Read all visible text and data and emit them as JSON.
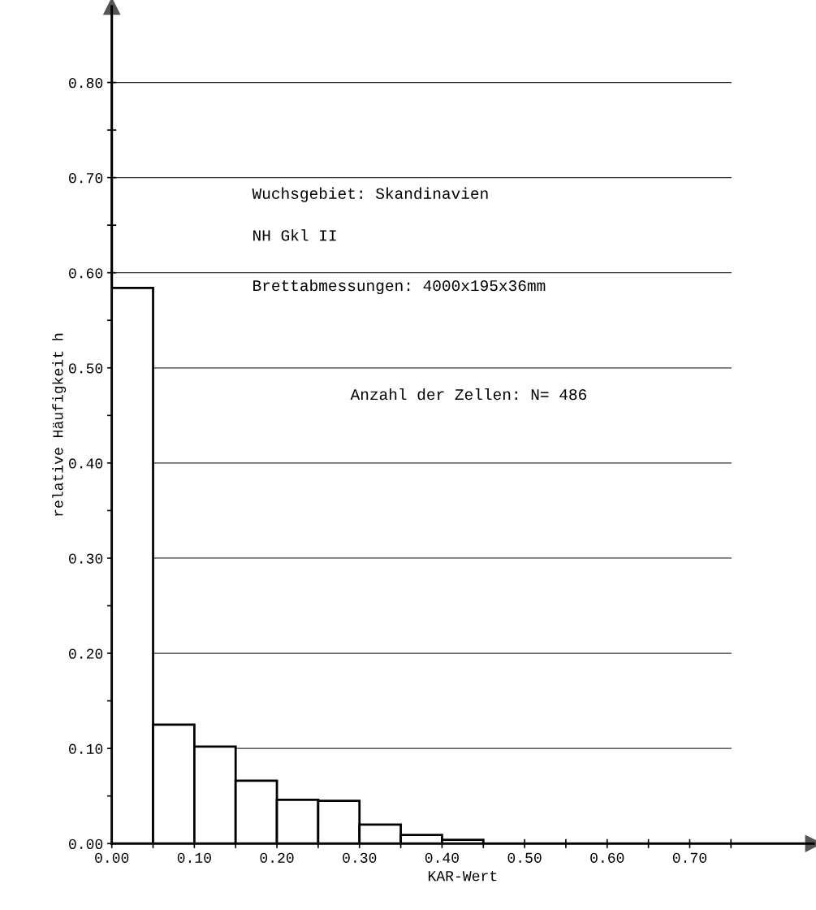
{
  "chart_data": {
    "type": "histogram",
    "xlabel": "KAR-Wert",
    "ylabel": "relative Häufigkeit h",
    "bins": [
      0.0,
      0.05,
      0.1,
      0.15,
      0.2,
      0.25,
      0.3,
      0.35,
      0.4,
      0.45
    ],
    "values": [
      0.584,
      0.125,
      0.102,
      0.066,
      0.046,
      0.045,
      0.02,
      0.009,
      0.004
    ],
    "color": "#ffffff",
    "xlim": [
      0.0,
      0.85
    ],
    "ylim": [
      0.0,
      0.88
    ],
    "xticks": [
      {
        "value": 0.0,
        "label": "0.00"
      },
      {
        "value": 0.05,
        "label": null
      },
      {
        "value": 0.1,
        "label": "0.10"
      },
      {
        "value": 0.15,
        "label": null
      },
      {
        "value": 0.2,
        "label": "0.20"
      },
      {
        "value": 0.25,
        "label": null
      },
      {
        "value": 0.3,
        "label": "0.30"
      },
      {
        "value": 0.35,
        "label": null
      },
      {
        "value": 0.4,
        "label": "0.40"
      },
      {
        "value": 0.45,
        "label": null
      },
      {
        "value": 0.5,
        "label": "0.50"
      },
      {
        "value": 0.55,
        "label": null
      },
      {
        "value": 0.6,
        "label": "0.60"
      },
      {
        "value": 0.65,
        "label": null
      },
      {
        "value": 0.7,
        "label": "0.70"
      },
      {
        "value": 0.75,
        "label": null
      }
    ],
    "yticks": [
      {
        "value": 0.0,
        "label": "0.00"
      },
      {
        "value": 0.05,
        "label": null
      },
      {
        "value": 0.1,
        "label": "0.10"
      },
      {
        "value": 0.15,
        "label": null
      },
      {
        "value": 0.2,
        "label": "0.20"
      },
      {
        "value": 0.25,
        "label": null
      },
      {
        "value": 0.3,
        "label": "0.30"
      },
      {
        "value": 0.35,
        "label": null
      },
      {
        "value": 0.4,
        "label": "0.40"
      },
      {
        "value": 0.45,
        "label": null
      },
      {
        "value": 0.5,
        "label": "0.50"
      },
      {
        "value": 0.55,
        "label": null
      },
      {
        "value": 0.6,
        "label": "0.60"
      },
      {
        "value": 0.65,
        "label": null
      },
      {
        "value": 0.7,
        "label": "0.70"
      },
      {
        "value": 0.75,
        "label": null
      },
      {
        "value": 0.8,
        "label": "0.80"
      }
    ],
    "grid": "y",
    "annotations": [
      "Wuchsgebiet: Skandinavien",
      "NH Gkl II",
      "Brettabmessungen: 4000x195x36mm",
      "Anzahl der Zellen: N= 486"
    ]
  }
}
